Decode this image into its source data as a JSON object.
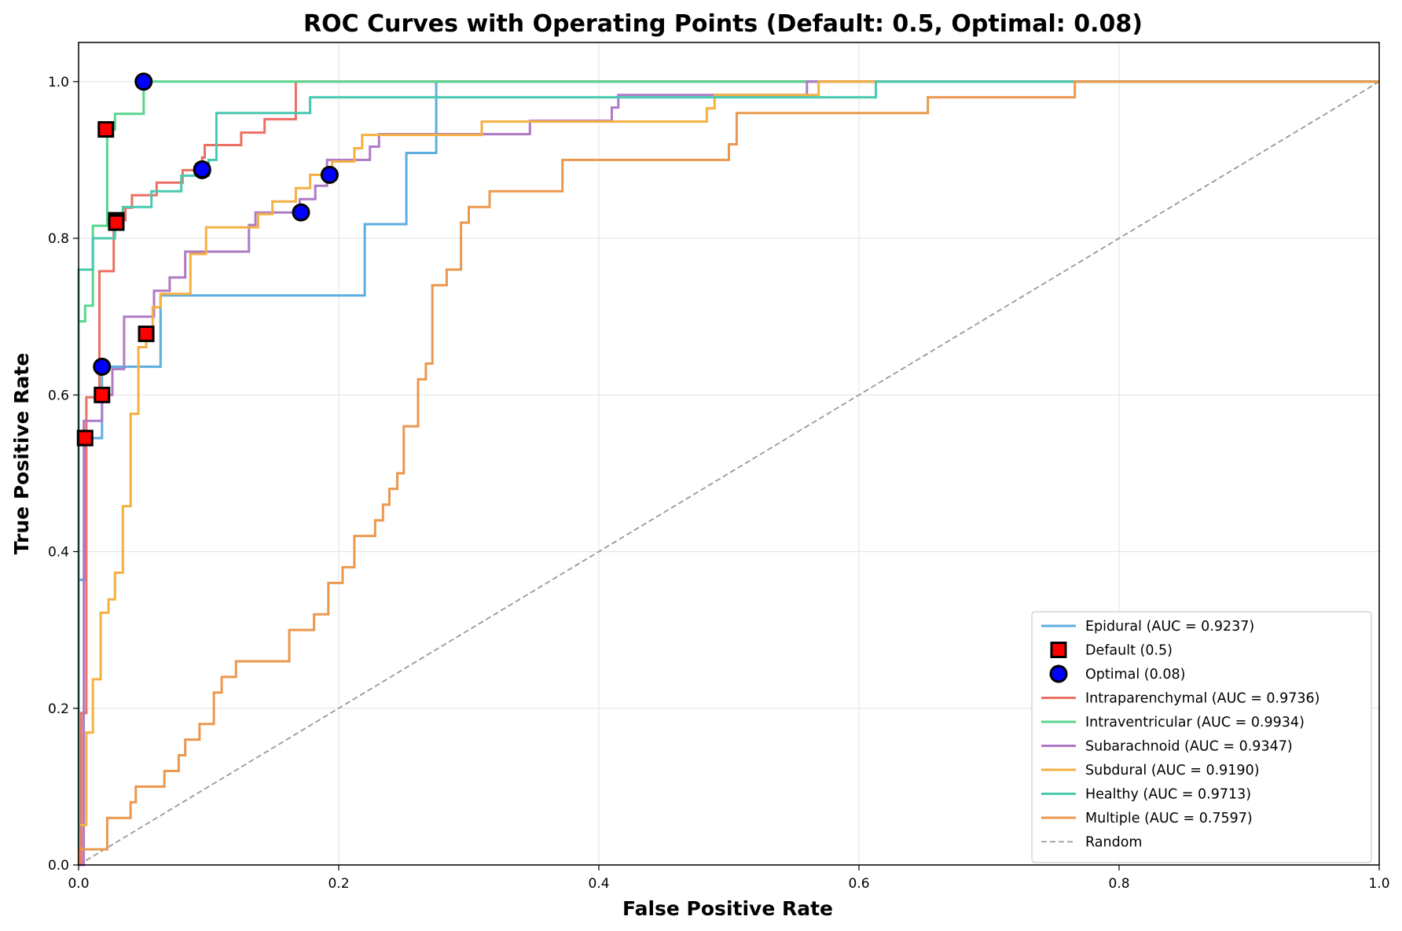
{
  "chart_data": {
    "type": "line",
    "title": "ROC Curves with Operating Points (Default: 0.5, Optimal: 0.08)",
    "xlabel": "False Positive Rate",
    "ylabel": "True Positive Rate",
    "xlim": [
      0,
      1.0
    ],
    "ylim": [
      0,
      1.05
    ],
    "grid": true,
    "legend_position": "lower-right",
    "x_ticks": [
      "0.0",
      "0.2",
      "0.4",
      "0.6",
      "0.8",
      "1.0"
    ],
    "y_ticks": [
      "0.0",
      "0.2",
      "0.4",
      "0.6",
      "0.8",
      "1.0"
    ],
    "series": [
      {
        "name": "Epidural (AUC = 0.9237)",
        "color": "#5DADE2",
        "points": [
          [
            0,
            0
          ],
          [
            0,
            0.364
          ],
          [
            0.005,
            0.364
          ],
          [
            0.005,
            0.545
          ],
          [
            0.018,
            0.545
          ],
          [
            0.018,
            0.636
          ],
          [
            0.063,
            0.636
          ],
          [
            0.063,
            0.727
          ],
          [
            0.22,
            0.727
          ],
          [
            0.22,
            0.818
          ],
          [
            0.252,
            0.818
          ],
          [
            0.252,
            0.909
          ],
          [
            0.275,
            0.909
          ],
          [
            0.275,
            1.0
          ],
          [
            1.0,
            1.0
          ]
        ]
      },
      {
        "name": "Intraparenchymal (AUC = 0.9736)",
        "color": "#EC7063",
        "points": [
          [
            0,
            0
          ],
          [
            0.002,
            0
          ],
          [
            0.002,
            0.194
          ],
          [
            0.006,
            0.194
          ],
          [
            0.006,
            0.597
          ],
          [
            0.016,
            0.597
          ],
          [
            0.016,
            0.758
          ],
          [
            0.027,
            0.758
          ],
          [
            0.027,
            0.823
          ],
          [
            0.036,
            0.823
          ],
          [
            0.036,
            0.839
          ],
          [
            0.041,
            0.839
          ],
          [
            0.041,
            0.855
          ],
          [
            0.06,
            0.855
          ],
          [
            0.06,
            0.871
          ],
          [
            0.08,
            0.871
          ],
          [
            0.08,
            0.887
          ],
          [
            0.095,
            0.887
          ],
          [
            0.095,
            0.903
          ],
          [
            0.097,
            0.903
          ],
          [
            0.097,
            0.919
          ],
          [
            0.125,
            0.919
          ],
          [
            0.125,
            0.935
          ],
          [
            0.143,
            0.935
          ],
          [
            0.143,
            0.952
          ],
          [
            0.167,
            0.952
          ],
          [
            0.167,
            1.0
          ],
          [
            1.0,
            1.0
          ]
        ]
      },
      {
        "name": "Intraventricular (AUC = 0.9934)",
        "color": "#58D68D",
        "points": [
          [
            0,
            0
          ],
          [
            0,
            0.694
          ],
          [
            0.005,
            0.694
          ],
          [
            0.005,
            0.714
          ],
          [
            0.011,
            0.714
          ],
          [
            0.011,
            0.816
          ],
          [
            0.022,
            0.816
          ],
          [
            0.022,
            0.939
          ],
          [
            0.028,
            0.939
          ],
          [
            0.028,
            0.959
          ],
          [
            0.05,
            0.959
          ],
          [
            0.05,
            1.0
          ],
          [
            1.0,
            1.0
          ]
        ]
      },
      {
        "name": "Subarachnoid (AUC = 0.9347)",
        "color": "#AF7AC5",
        "points": [
          [
            0,
            0
          ],
          [
            0.004,
            0
          ],
          [
            0.004,
            0.533
          ],
          [
            0.004,
            0.567
          ],
          [
            0.018,
            0.567
          ],
          [
            0.018,
            0.6
          ],
          [
            0.026,
            0.6
          ],
          [
            0.026,
            0.633
          ],
          [
            0.035,
            0.633
          ],
          [
            0.035,
            0.7
          ],
          [
            0.058,
            0.7
          ],
          [
            0.058,
            0.733
          ],
          [
            0.07,
            0.733
          ],
          [
            0.07,
            0.75
          ],
          [
            0.082,
            0.75
          ],
          [
            0.082,
            0.783
          ],
          [
            0.131,
            0.783
          ],
          [
            0.131,
            0.817
          ],
          [
            0.136,
            0.817
          ],
          [
            0.136,
            0.833
          ],
          [
            0.17,
            0.833
          ],
          [
            0.17,
            0.85
          ],
          [
            0.182,
            0.85
          ],
          [
            0.182,
            0.867
          ],
          [
            0.191,
            0.867
          ],
          [
            0.191,
            0.9
          ],
          [
            0.224,
            0.9
          ],
          [
            0.224,
            0.917
          ],
          [
            0.231,
            0.917
          ],
          [
            0.231,
            0.933
          ],
          [
            0.347,
            0.933
          ],
          [
            0.347,
            0.95
          ],
          [
            0.41,
            0.95
          ],
          [
            0.41,
            0.967
          ],
          [
            0.415,
            0.967
          ],
          [
            0.415,
            0.983
          ],
          [
            0.56,
            0.983
          ],
          [
            0.56,
            1.0
          ],
          [
            1.0,
            1.0
          ]
        ]
      },
      {
        "name": "Subdural (AUC = 0.9190)",
        "color": "#F5B041",
        "points": [
          [
            0,
            0
          ],
          [
            0,
            0.051
          ],
          [
            0.006,
            0.051
          ],
          [
            0.006,
            0.169
          ],
          [
            0.011,
            0.169
          ],
          [
            0.011,
            0.237
          ],
          [
            0.017,
            0.237
          ],
          [
            0.017,
            0.322
          ],
          [
            0.023,
            0.322
          ],
          [
            0.023,
            0.339
          ],
          [
            0.028,
            0.339
          ],
          [
            0.028,
            0.373
          ],
          [
            0.034,
            0.373
          ],
          [
            0.034,
            0.458
          ],
          [
            0.04,
            0.458
          ],
          [
            0.04,
            0.576
          ],
          [
            0.046,
            0.576
          ],
          [
            0.046,
            0.661
          ],
          [
            0.052,
            0.661
          ],
          [
            0.052,
            0.678
          ],
          [
            0.057,
            0.678
          ],
          [
            0.057,
            0.712
          ],
          [
            0.063,
            0.712
          ],
          [
            0.063,
            0.729
          ],
          [
            0.086,
            0.729
          ],
          [
            0.086,
            0.78
          ],
          [
            0.098,
            0.78
          ],
          [
            0.098,
            0.814
          ],
          [
            0.138,
            0.814
          ],
          [
            0.138,
            0.831
          ],
          [
            0.149,
            0.831
          ],
          [
            0.149,
            0.847
          ],
          [
            0.167,
            0.847
          ],
          [
            0.167,
            0.864
          ],
          [
            0.178,
            0.864
          ],
          [
            0.178,
            0.881
          ],
          [
            0.195,
            0.881
          ],
          [
            0.195,
            0.898
          ],
          [
            0.212,
            0.898
          ],
          [
            0.212,
            0.915
          ],
          [
            0.218,
            0.915
          ],
          [
            0.218,
            0.932
          ],
          [
            0.31,
            0.932
          ],
          [
            0.31,
            0.949
          ],
          [
            0.483,
            0.949
          ],
          [
            0.483,
            0.966
          ],
          [
            0.489,
            0.966
          ],
          [
            0.489,
            0.983
          ],
          [
            0.569,
            0.983
          ],
          [
            0.569,
            1.0
          ],
          [
            1.0,
            1.0
          ]
        ]
      },
      {
        "name": "Healthy (AUC = 0.9713)",
        "color": "#48C9B0",
        "points": [
          [
            0,
            0
          ],
          [
            0,
            0.76
          ],
          [
            0.011,
            0.76
          ],
          [
            0.011,
            0.8
          ],
          [
            0.028,
            0.8
          ],
          [
            0.028,
            0.82
          ],
          [
            0.034,
            0.82
          ],
          [
            0.034,
            0.84
          ],
          [
            0.056,
            0.84
          ],
          [
            0.056,
            0.86
          ],
          [
            0.079,
            0.86
          ],
          [
            0.079,
            0.88
          ],
          [
            0.1,
            0.88
          ],
          [
            0.1,
            0.9
          ],
          [
            0.106,
            0.9
          ],
          [
            0.106,
            0.96
          ],
          [
            0.178,
            0.96
          ],
          [
            0.178,
            0.98
          ],
          [
            0.613,
            0.98
          ],
          [
            0.613,
            1.0
          ],
          [
            1.0,
            1.0
          ]
        ]
      },
      {
        "name": "Multiple (AUC = 0.7597)",
        "color": "#EB984E",
        "points": [
          [
            0,
            0
          ],
          [
            0,
            0.02
          ],
          [
            0.022,
            0.02
          ],
          [
            0.022,
            0.06
          ],
          [
            0.04,
            0.06
          ],
          [
            0.04,
            0.08
          ],
          [
            0.044,
            0.08
          ],
          [
            0.044,
            0.1
          ],
          [
            0.066,
            0.1
          ],
          [
            0.066,
            0.12
          ],
          [
            0.077,
            0.12
          ],
          [
            0.077,
            0.14
          ],
          [
            0.082,
            0.14
          ],
          [
            0.082,
            0.16
          ],
          [
            0.093,
            0.16
          ],
          [
            0.093,
            0.18
          ],
          [
            0.104,
            0.18
          ],
          [
            0.104,
            0.22
          ],
          [
            0.11,
            0.22
          ],
          [
            0.11,
            0.24
          ],
          [
            0.121,
            0.24
          ],
          [
            0.121,
            0.26
          ],
          [
            0.162,
            0.26
          ],
          [
            0.162,
            0.3
          ],
          [
            0.181,
            0.3
          ],
          [
            0.181,
            0.32
          ],
          [
            0.192,
            0.32
          ],
          [
            0.192,
            0.36
          ],
          [
            0.203,
            0.36
          ],
          [
            0.203,
            0.38
          ],
          [
            0.212,
            0.38
          ],
          [
            0.212,
            0.42
          ],
          [
            0.228,
            0.42
          ],
          [
            0.228,
            0.44
          ],
          [
            0.234,
            0.44
          ],
          [
            0.234,
            0.46
          ],
          [
            0.239,
            0.46
          ],
          [
            0.239,
            0.48
          ],
          [
            0.245,
            0.48
          ],
          [
            0.245,
            0.5
          ],
          [
            0.25,
            0.5
          ],
          [
            0.25,
            0.56
          ],
          [
            0.261,
            0.56
          ],
          [
            0.261,
            0.62
          ],
          [
            0.267,
            0.62
          ],
          [
            0.267,
            0.64
          ],
          [
            0.272,
            0.64
          ],
          [
            0.272,
            0.74
          ],
          [
            0.283,
            0.74
          ],
          [
            0.283,
            0.76
          ],
          [
            0.294,
            0.76
          ],
          [
            0.294,
            0.82
          ],
          [
            0.3,
            0.82
          ],
          [
            0.3,
            0.84
          ],
          [
            0.316,
            0.84
          ],
          [
            0.316,
            0.86
          ],
          [
            0.372,
            0.86
          ],
          [
            0.372,
            0.9
          ],
          [
            0.5,
            0.9
          ],
          [
            0.5,
            0.92
          ],
          [
            0.506,
            0.92
          ],
          [
            0.506,
            0.96
          ],
          [
            0.653,
            0.96
          ],
          [
            0.653,
            0.98
          ],
          [
            0.766,
            0.98
          ],
          [
            0.766,
            1.0
          ],
          [
            1.0,
            1.0
          ]
        ]
      }
    ],
    "operating_points": {
      "default": {
        "name": "Default (0.5)",
        "color": "#ff0000",
        "points": [
          [
            0.005,
            0.545
          ],
          [
            0.018,
            0.6
          ],
          [
            0.021,
            0.939
          ],
          [
            0.029,
            0.823
          ],
          [
            0.052,
            0.678
          ],
          [
            0.029,
            0.82
          ]
        ]
      },
      "optimal": {
        "name": "Optimal (0.08)",
        "color": "#0000ff",
        "points": [
          [
            0.018,
            0.636
          ],
          [
            0.05,
            1.0
          ],
          [
            0.095,
            0.887
          ],
          [
            0.171,
            0.833
          ],
          [
            0.193,
            0.881
          ],
          [
            0.095,
            0.888
          ]
        ]
      }
    },
    "random": {
      "name": "Random",
      "color": "#999999",
      "points": [
        [
          0,
          0
        ],
        [
          1,
          1
        ]
      ]
    },
    "legend_order": [
      "Epidural (AUC = 0.9237)",
      "Default (0.5)",
      "Optimal (0.08)",
      "Intraparenchymal (AUC = 0.9736)",
      "Intraventricular (AUC = 0.9934)",
      "Subarachnoid (AUC = 0.9347)",
      "Subdural (AUC = 0.9190)",
      "Healthy (AUC = 0.9713)",
      "Multiple (AUC = 0.7597)",
      "Random"
    ]
  }
}
